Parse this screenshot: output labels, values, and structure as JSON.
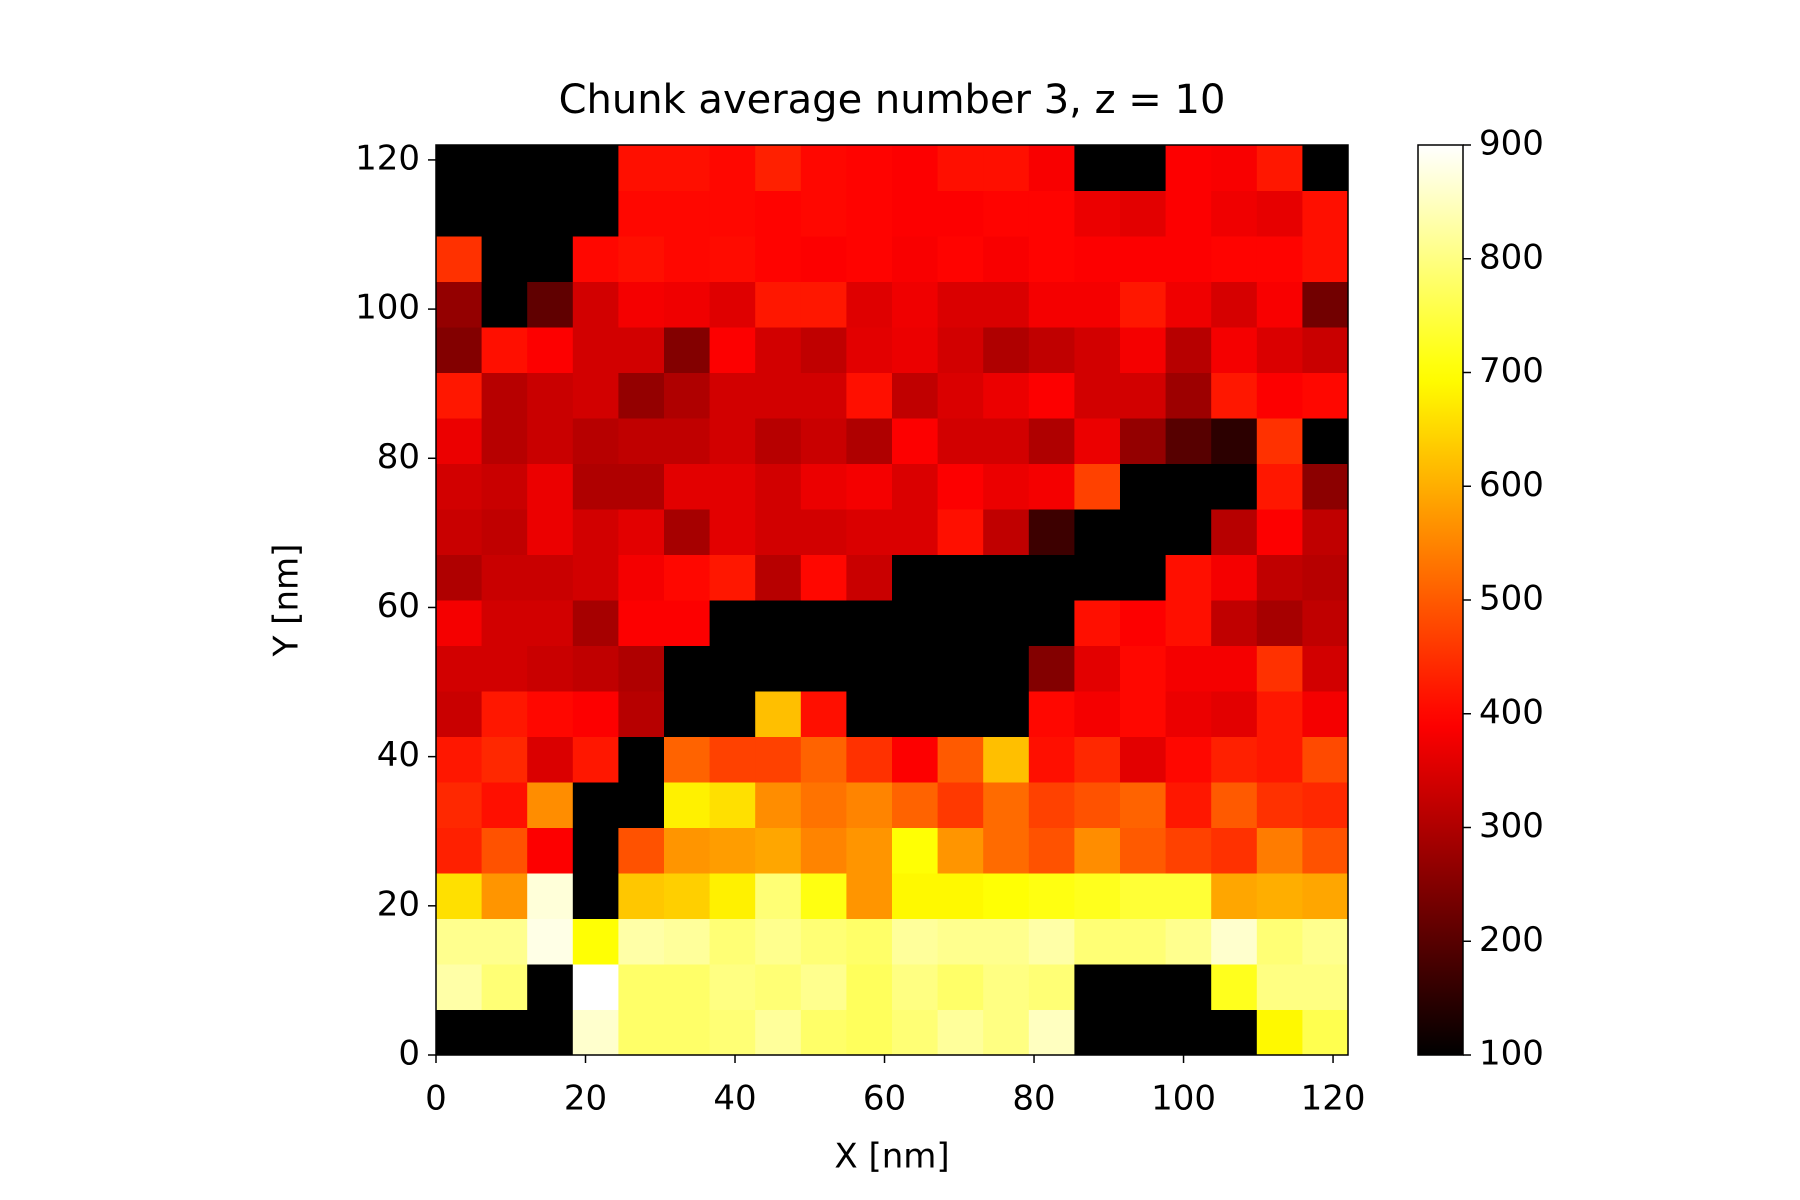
{
  "chart_data": {
    "type": "heatmap",
    "title": "Chunk average number 3, z = 10",
    "x_label": "X [nm]",
    "y_label": "Y [nm]",
    "colormap": "hot",
    "clim": [
      100,
      900
    ],
    "cticks": [
      100,
      200,
      300,
      400,
      500,
      600,
      700,
      800,
      900
    ],
    "xlim": [
      0,
      122
    ],
    "ylim": [
      0,
      122
    ],
    "xticks": [
      0,
      20,
      40,
      60,
      80,
      100,
      120
    ],
    "yticks": [
      0,
      20,
      40,
      60,
      80,
      100,
      120
    ],
    "z": [
      [
        100,
        100,
        100,
        860,
        780,
        780,
        790,
        820,
        780,
        770,
        790,
        820,
        800,
        850,
        100,
        100,
        100,
        100,
        690,
        760
      ],
      [
        830,
        790,
        100,
        900,
        780,
        780,
        800,
        790,
        810,
        770,
        800,
        780,
        800,
        790,
        100,
        100,
        100,
        720,
        800,
        800
      ],
      [
        810,
        810,
        880,
        700,
        830,
        820,
        790,
        810,
        790,
        780,
        820,
        810,
        810,
        830,
        790,
        790,
        810,
        860,
        790,
        810
      ],
      [
        660,
        570,
        870,
        100,
        630,
        640,
        680,
        790,
        710,
        570,
        690,
        690,
        700,
        710,
        720,
        740,
        740,
        590,
        600,
        590
      ],
      [
        430,
        490,
        390,
        100,
        490,
        570,
        580,
        590,
        550,
        570,
        700,
        570,
        520,
        490,
        560,
        500,
        470,
        450,
        540,
        490
      ],
      [
        440,
        410,
        560,
        100,
        100,
        680,
        660,
        560,
        530,
        550,
        510,
        460,
        520,
        470,
        490,
        510,
        420,
        500,
        450,
        440
      ],
      [
        420,
        440,
        350,
        420,
        100,
        510,
        470,
        470,
        510,
        450,
        390,
        500,
        620,
        410,
        440,
        360,
        400,
        430,
        420,
        480
      ],
      [
        330,
        420,
        400,
        390,
        310,
        100,
        100,
        620,
        410,
        100,
        100,
        100,
        100,
        400,
        380,
        400,
        370,
        360,
        420,
        380
      ],
      [
        340,
        340,
        330,
        320,
        300,
        100,
        100,
        100,
        100,
        100,
        100,
        100,
        100,
        250,
        360,
        400,
        380,
        380,
        450,
        340
      ],
      [
        380,
        340,
        340,
        290,
        390,
        390,
        100,
        100,
        100,
        100,
        100,
        100,
        100,
        100,
        410,
        390,
        410,
        320,
        290,
        320
      ],
      [
        300,
        330,
        330,
        340,
        380,
        400,
        420,
        310,
        400,
        330,
        100,
        100,
        100,
        100,
        100,
        100,
        410,
        380,
        320,
        310
      ],
      [
        330,
        320,
        370,
        340,
        360,
        290,
        360,
        340,
        340,
        350,
        350,
        410,
        320,
        170,
        100,
        100,
        100,
        310,
        390,
        320
      ],
      [
        340,
        330,
        370,
        300,
        300,
        360,
        360,
        340,
        370,
        380,
        350,
        390,
        370,
        380,
        470,
        100,
        100,
        100,
        420,
        260
      ],
      [
        370,
        310,
        330,
        310,
        320,
        320,
        340,
        310,
        330,
        300,
        390,
        340,
        340,
        300,
        370,
        270,
        200,
        150,
        450,
        100
      ],
      [
        420,
        310,
        330,
        340,
        270,
        300,
        340,
        340,
        340,
        410,
        320,
        350,
        370,
        390,
        340,
        340,
        280,
        420,
        390,
        400
      ],
      [
        250,
        410,
        390,
        340,
        340,
        250,
        390,
        340,
        320,
        360,
        370,
        340,
        300,
        320,
        340,
        380,
        310,
        380,
        350,
        330
      ],
      [
        270,
        100,
        210,
        340,
        380,
        375,
        355,
        420,
        420,
        355,
        375,
        350,
        350,
        380,
        380,
        420,
        375,
        345,
        385,
        230
      ],
      [
        450,
        100,
        100,
        400,
        410,
        400,
        405,
        395,
        390,
        395,
        385,
        395,
        385,
        395,
        390,
        390,
        390,
        395,
        395,
        410
      ],
      [
        100,
        100,
        100,
        100,
        400,
        400,
        400,
        395,
        400,
        395,
        390,
        390,
        395,
        395,
        370,
        360,
        390,
        375,
        365,
        410
      ],
      [
        100,
        100,
        100,
        100,
        410,
        410,
        400,
        430,
        400,
        395,
        390,
        410,
        410,
        385,
        100,
        100,
        390,
        385,
        420,
        100
      ]
    ]
  }
}
